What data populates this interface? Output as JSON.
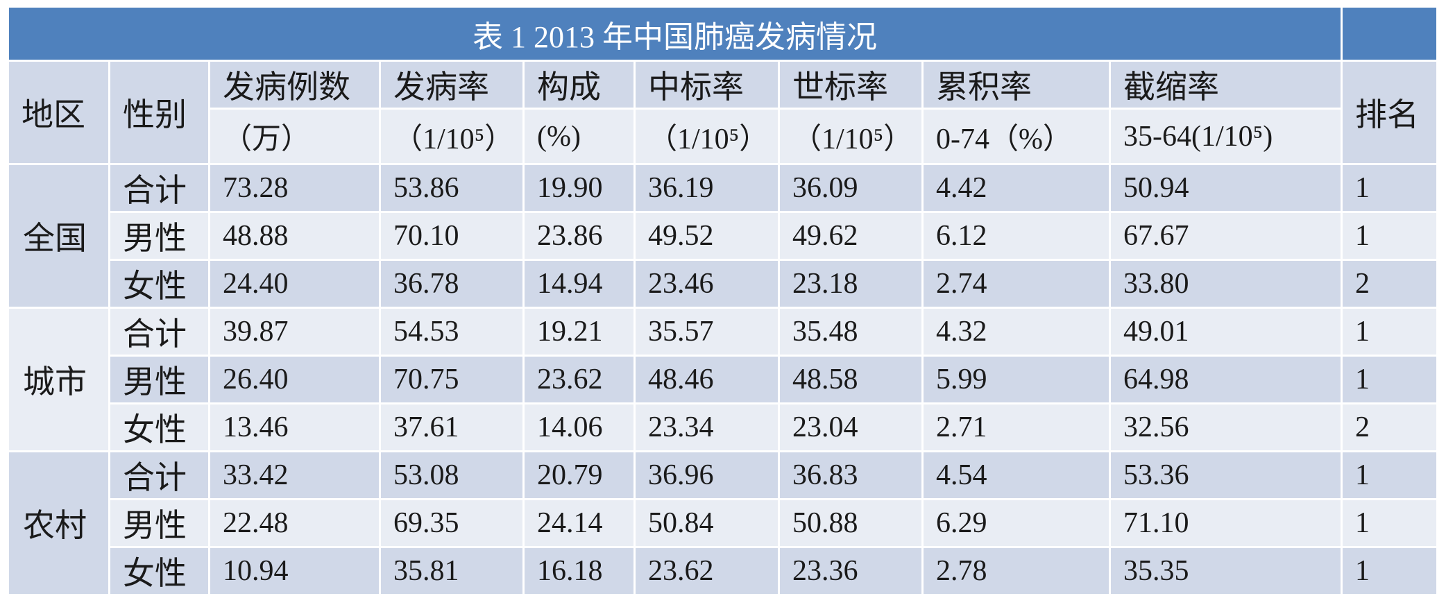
{
  "title": "表 1 2013 年中国肺癌发病情况",
  "header": {
    "row1": [
      "地区",
      "性别",
      "发病例数",
      "发病率",
      "构成",
      "中标率",
      "世标率",
      "累积率",
      "截缩率",
      "排名"
    ],
    "row2": [
      "（万）",
      "（1/10⁵）",
      "(%)",
      "（1/10⁵）",
      "（1/10⁵）",
      "0-74（%）",
      "35-64(1/10⁵)"
    ]
  },
  "groups": [
    {
      "region": "全国",
      "rows": [
        [
          "合计",
          "73.28",
          "53.86",
          "19.90",
          "36.19",
          "36.09",
          "4.42",
          "50.94",
          "1"
        ],
        [
          "男性",
          "48.88",
          "70.10",
          "23.86",
          "49.52",
          "49.62",
          "6.12",
          "67.67",
          "1"
        ],
        [
          "女性",
          "24.40",
          "36.78",
          "14.94",
          "23.46",
          "23.18",
          "2.74",
          "33.80",
          "2"
        ]
      ]
    },
    {
      "region": "城市",
      "rows": [
        [
          "合计",
          "39.87",
          "54.53",
          "19.21",
          "35.57",
          "35.48",
          "4.32",
          "49.01",
          "1"
        ],
        [
          "男性",
          "26.40",
          "70.75",
          "23.62",
          "48.46",
          "48.58",
          "5.99",
          "64.98",
          "1"
        ],
        [
          "女性",
          "13.46",
          "37.61",
          "14.06",
          "23.34",
          "23.04",
          "2.71",
          "32.56",
          "2"
        ]
      ]
    },
    {
      "region": "农村",
      "rows": [
        [
          "合计",
          "33.42",
          "53.08",
          "20.79",
          "36.96",
          "36.83",
          "4.54",
          "53.36",
          "1"
        ],
        [
          "男性",
          "22.48",
          "69.35",
          "24.14",
          "50.84",
          "50.88",
          "6.29",
          "71.10",
          "1"
        ],
        [
          "女性",
          "10.94",
          "35.81",
          "16.18",
          "23.62",
          "23.36",
          "2.78",
          "35.35",
          "1"
        ]
      ]
    }
  ]
}
